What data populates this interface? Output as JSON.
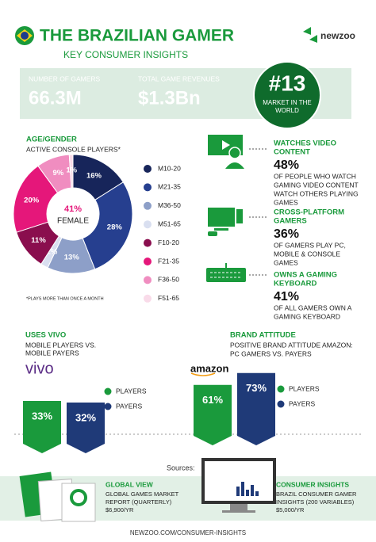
{
  "header": {
    "title": "THE BRAZILIAN GAMER",
    "subtitle": "KEY CONSUMER INSIGHTS",
    "brand": "newzoo"
  },
  "stats": [
    {
      "label": "NUMBER OF GAMERS",
      "value": "66.3M"
    },
    {
      "label": "TOTAL GAME REVENUES",
      "value": "$1.3Bn"
    }
  ],
  "rank": {
    "value": "#13",
    "label": [
      "MARKET IN THE",
      "WORLD"
    ]
  },
  "chart_data": [
    {
      "type": "pie",
      "title": "AGE/GENDER",
      "subtitle": "ACTIVE CONSOLE PLAYERS*",
      "center_text": "41%",
      "center_label": "FEMALE",
      "categories": [
        "M10-20",
        "M21-35",
        "M36-50",
        "M51-65",
        "F10-20",
        "F21-35",
        "F36-50",
        "F51-65"
      ],
      "values": [
        16,
        28,
        13,
        2,
        11,
        20,
        9,
        1
      ],
      "value_labels": [
        "16%",
        "28%",
        "13%",
        "2%",
        "11%",
        "20%",
        "9%",
        "1%"
      ],
      "colors": [
        "#17255a",
        "#263f8f",
        "#8d9fc8",
        "#d9dff0",
        "#8a0e4e",
        "#e5177a",
        "#f08dc0",
        "#f9dbe9"
      ],
      "note": "*PLAYS MORE THAN ONCE A MONTH"
    },
    {
      "type": "bar",
      "title": "USES VIVO",
      "subtitle": [
        "MOBILE PLAYERS VS.",
        "MOBILE PAYERS"
      ],
      "brand": "vivo",
      "categories": [
        null
      ],
      "series": [
        {
          "name": "PLAYERS",
          "color": "#1a9a3c",
          "values": [
            33
          ],
          "value_labels": [
            "33%"
          ]
        },
        {
          "name": "PAYERS",
          "color": "#1f3a78",
          "values": [
            32
          ],
          "value_labels": [
            "32%"
          ]
        }
      ]
    },
    {
      "type": "bar",
      "title": "BRAND ATTITUDE",
      "subtitle": [
        "POSITIVE BRAND ATTITUDE AMAZON:",
        "PC GAMERS VS. PAYERS"
      ],
      "brand": "amazon",
      "categories": [
        null
      ],
      "series": [
        {
          "name": "PLAYERS",
          "color": "#1a9a3c",
          "values": [
            61
          ],
          "value_labels": [
            "61%"
          ]
        },
        {
          "name": "PAYERS",
          "color": "#1f3a78",
          "values": [
            73
          ],
          "value_labels": [
            "73%"
          ]
        }
      ]
    }
  ],
  "insights": [
    {
      "title": [
        "WATCHES VIDEO",
        "CONTENT"
      ],
      "value": "48%",
      "text": [
        "OF PEOPLE WHO WATCH",
        "GAMING VIDEO CONTENT",
        "WATCH OTHERS PLAYING",
        "GAMES"
      ]
    },
    {
      "title": [
        "CROSS-PLATFORM",
        "GAMERS"
      ],
      "value": "36%",
      "text": [
        "OF GAMERS PLAY PC,",
        "MOBILE & CONSOLE",
        "GAMES"
      ]
    },
    {
      "title": [
        "OWNS A GAMING",
        "KEYBOARD"
      ],
      "value": "41%",
      "text": [
        "OF ALL GAMERS OWN A",
        "GAMING KEYBOARD"
      ]
    }
  ],
  "sources": {
    "label": "Sources:",
    "items": [
      {
        "title": "GLOBAL VIEW",
        "text": [
          "GLOBAL GAMES MARKET",
          "REPORT (QUARTERLY)",
          "$6,900/YR"
        ]
      },
      {
        "title": "CONSUMER INSIGHTS",
        "text": [
          "BRAZIL CONSUMER GAMER",
          "INSIGHTS (200 VARIABLES)",
          "$5,000/YR"
        ]
      }
    ]
  },
  "footer": "NEWZOO.COM/CONSUMER-INSIGHTS"
}
